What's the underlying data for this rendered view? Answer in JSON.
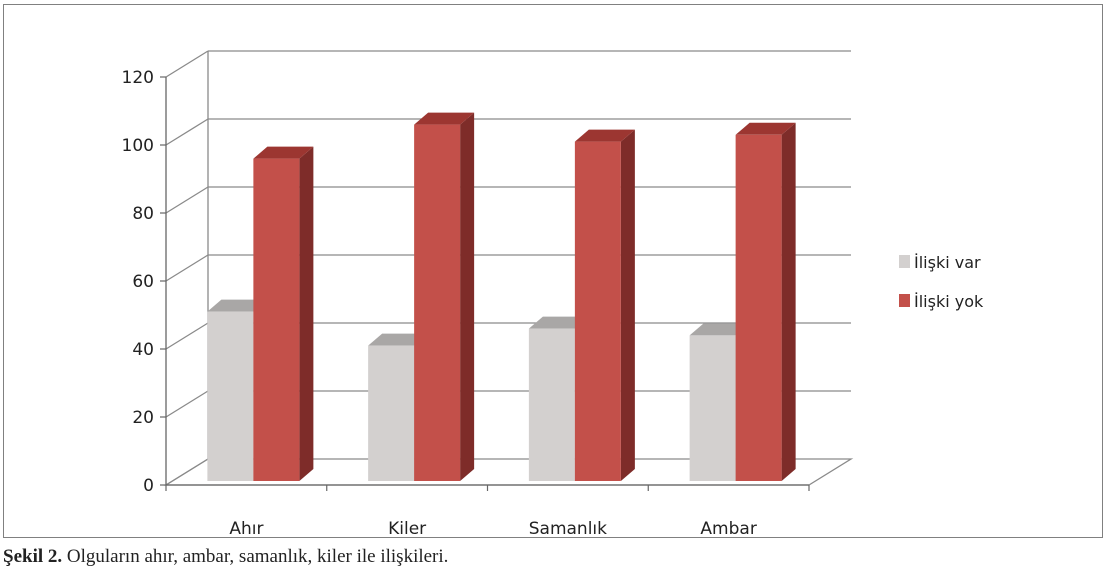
{
  "chart_data": {
    "type": "bar",
    "style": "3d-clustered-column",
    "categories": [
      "Ahır",
      "Kiler",
      "Samanlık",
      "Ambar"
    ],
    "series": [
      {
        "name": "İlişki var",
        "values": [
          51,
          41,
          46,
          44
        ]
      },
      {
        "name": "İlişki yok",
        "values": [
          96,
          106,
          101,
          103
        ]
      }
    ],
    "ylim": [
      0,
      120
    ],
    "yticks": [
      "0",
      "20",
      "40",
      "60",
      "80",
      "100",
      "120"
    ],
    "grid": true,
    "legend": "right",
    "colors": {
      "series_0": "#d3d0cf",
      "series_0_top": "#a9a7a6",
      "series_0_side": "#b9b6b5",
      "series_1": "#c3504a",
      "series_1_top": "#9c3631",
      "series_1_side": "#7e2c29",
      "grid": "#8a8a8a"
    }
  },
  "caption": {
    "label": "Şekil 2.",
    "text": " Olguların ahır, ambar, samanlık, kiler ile ilişkileri."
  }
}
